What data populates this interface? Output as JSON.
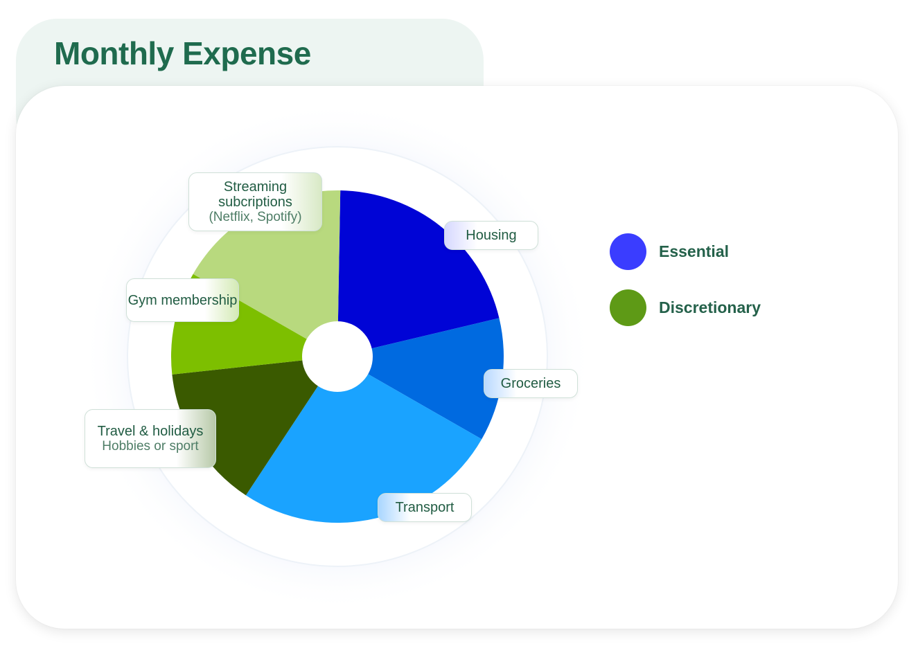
{
  "header": {
    "title": "Monthly Expense"
  },
  "chart_data": {
    "type": "pie",
    "title": "Monthly Expense",
    "categories": [
      "Housing",
      "Groceries",
      "Transport",
      "Travel & holidays",
      "Gym membership",
      "Streaming subcriptions"
    ],
    "slices": [
      {
        "key": "housing",
        "label": "Housing",
        "sublabel": "",
        "value": 21,
        "group": "Essential",
        "color": "#0004d6"
      },
      {
        "key": "groceries",
        "label": "Groceries",
        "sublabel": "",
        "value": 12,
        "group": "Essential",
        "color": "#006ae0"
      },
      {
        "key": "transport",
        "label": "Transport",
        "sublabel": "",
        "value": 26,
        "group": "Essential",
        "color": "#1aa3ff"
      },
      {
        "key": "travel",
        "label": "Travel & holidays",
        "sublabel": "Hobbies or sport",
        "value": 14,
        "group": "Discretionary",
        "color": "#3a5a00"
      },
      {
        "key": "gym",
        "label": "Gym membership",
        "sublabel": "",
        "value": 10,
        "group": "Discretionary",
        "color": "#7dbf00"
      },
      {
        "key": "streaming",
        "label": "Streaming subcriptions",
        "sublabel": "(Netflix, Spotify)",
        "value": 17,
        "group": "Discretionary",
        "color": "#b8d97e"
      }
    ],
    "legend": {
      "position": "right",
      "items": [
        {
          "label": "Essential",
          "color": "#3a3dff"
        },
        {
          "label": "Discretionary",
          "color": "#5e9a16"
        }
      ]
    }
  }
}
